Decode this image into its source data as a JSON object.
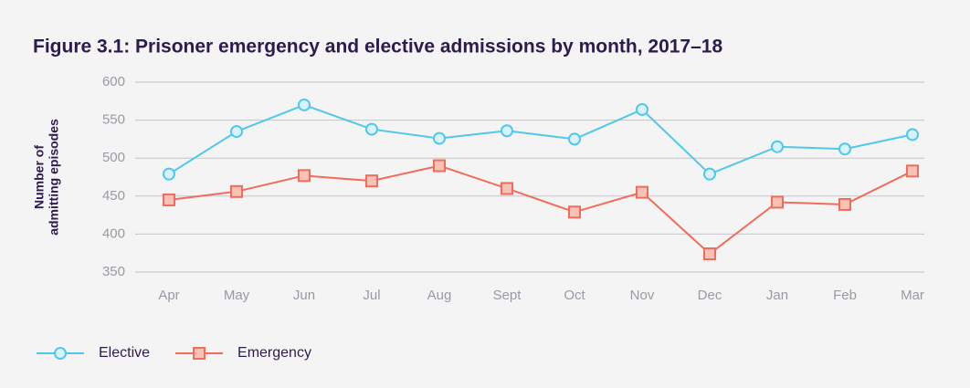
{
  "chart_data": {
    "type": "line",
    "title": "Figure 3.1: Prisoner emergency and elective admissions by month, 2017–18",
    "ylabel": [
      "Number of",
      "admitting episodes"
    ],
    "categories": [
      "Apr",
      "May",
      "Jun",
      "Jul",
      "Aug",
      "Sept",
      "Oct",
      "Nov",
      "Dec",
      "Jan",
      "Feb",
      "Mar"
    ],
    "series": [
      {
        "name": "Elective",
        "color": "#4fc8ec",
        "marker": "circle",
        "values": [
          479,
          535,
          570,
          538,
          526,
          536,
          525,
          564,
          479,
          515,
          512,
          531
        ]
      },
      {
        "name": "Emergency",
        "color": "#f26b5b",
        "marker": "square",
        "values": [
          445,
          456,
          477,
          470,
          490,
          460,
          429,
          455,
          374,
          442,
          439,
          483
        ]
      }
    ],
    "ylim": [
      350,
      600
    ],
    "yticks": [
      350,
      400,
      450,
      500,
      550,
      600
    ],
    "grid": true,
    "legend": "bottom-left"
  }
}
